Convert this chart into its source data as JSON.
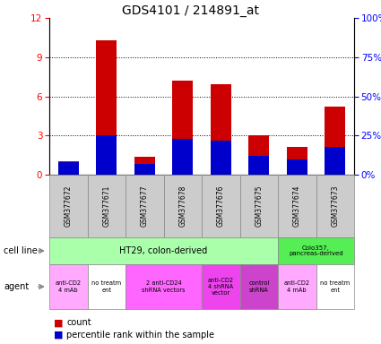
{
  "title": "GDS4101 / 214891_at",
  "samples": [
    "GSM377672",
    "GSM377671",
    "GSM377677",
    "GSM377678",
    "GSM377676",
    "GSM377675",
    "GSM377674",
    "GSM377673"
  ],
  "count_values": [
    1.0,
    10.3,
    1.4,
    7.2,
    6.9,
    3.0,
    2.1,
    5.2
  ],
  "percentile_values": [
    8.0,
    25.0,
    7.0,
    23.0,
    22.0,
    12.0,
    10.0,
    18.0
  ],
  "ylim_left": [
    0,
    12
  ],
  "ylim_right": [
    0,
    100
  ],
  "yticks_left": [
    0,
    3,
    6,
    9,
    12
  ],
  "yticks_right": [
    0,
    25,
    50,
    75,
    100
  ],
  "ytick_labels_right": [
    "0%",
    "25%",
    "50%",
    "75%",
    "100%"
  ],
  "count_color": "#cc0000",
  "percentile_color": "#0000cc",
  "cell_line_ht29_color": "#aaffaa",
  "cell_line_colo_color": "#55ee55",
  "agent_groups": [
    {
      "label": "anti-CD2\n4 mAb",
      "cols": [
        0
      ],
      "color": "#ffaaff"
    },
    {
      "label": "no treatm\nent",
      "cols": [
        1
      ],
      "color": "#ffffff"
    },
    {
      "label": "2 anti-CD24\nshRNA vectors",
      "cols": [
        2,
        3
      ],
      "color": "#ff66ff"
    },
    {
      "label": "anti-CD2\n4 shRNA\nvector",
      "cols": [
        4
      ],
      "color": "#ee44ee"
    },
    {
      "label": "control\nshRNA",
      "cols": [
        5
      ],
      "color": "#cc44cc"
    },
    {
      "label": "anti-CD2\n4 mAb",
      "cols": [
        6
      ],
      "color": "#ffaaff"
    },
    {
      "label": "no treatm\nent",
      "cols": [
        7
      ],
      "color": "#ffffff"
    }
  ]
}
